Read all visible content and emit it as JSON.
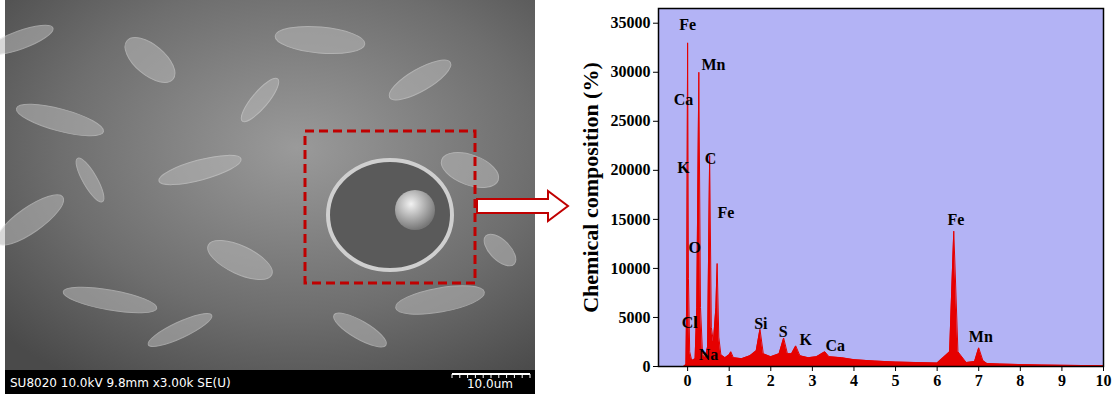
{
  "chart_data": {
    "type": "area",
    "ylabel": "Chemical composition (%)",
    "x": [
      -0.1,
      -0.04,
      -0.02,
      0.0,
      0.02,
      0.05,
      0.1,
      0.18,
      0.22,
      0.27,
      0.31,
      0.36,
      0.42,
      0.48,
      0.53,
      0.57,
      0.62,
      0.68,
      0.71,
      0.75,
      0.8,
      0.9,
      1.0,
      1.04,
      1.1,
      1.3,
      1.5,
      1.65,
      1.74,
      1.82,
      2.0,
      2.2,
      2.31,
      2.4,
      2.5,
      2.6,
      2.7,
      2.9,
      3.1,
      3.3,
      3.4,
      3.7,
      4.0,
      4.5,
      5.0,
      5.5,
      6.0,
      6.3,
      6.4,
      6.5,
      6.7,
      6.9,
      7.0,
      7.1,
      7.2,
      7.5,
      8.0,
      8.5,
      9.0,
      9.5,
      10.0
    ],
    "values": [
      0,
      200,
      8000,
      33000,
      9000,
      1500,
      600,
      800,
      6000,
      30000,
      6000,
      1200,
      900,
      2000,
      21500,
      4000,
      2500,
      6000,
      10500,
      3000,
      1200,
      900,
      1200,
      1500,
      900,
      800,
      1100,
      1600,
      3800,
      1300,
      1000,
      1300,
      2900,
      1300,
      1300,
      2100,
      1100,
      900,
      1000,
      1500,
      1000,
      900,
      700,
      550,
      450,
      400,
      350,
      1500,
      13800,
      1500,
      400,
      500,
      1900,
      600,
      300,
      250,
      200,
      150,
      120,
      100,
      80
    ],
    "color": "#e60000",
    "xlim": [
      -0.7,
      10
    ],
    "ylim": [
      0,
      36500
    ],
    "xticks": [
      0,
      1,
      2,
      3,
      4,
      5,
      6,
      7,
      8,
      9,
      10
    ],
    "yticks": [
      0,
      5000,
      10000,
      15000,
      20000,
      25000,
      30000,
      35000
    ],
    "grid": false,
    "annotations": [
      {
        "text": "Fe",
        "x": 0.0,
        "y": 34800
      },
      {
        "text": "Mn",
        "x": 0.62,
        "y": 30800
      },
      {
        "text": "Ca",
        "x": -0.1,
        "y": 27200
      },
      {
        "text": "K",
        "x": -0.1,
        "y": 20300
      },
      {
        "text": "C",
        "x": 0.55,
        "y": 21200
      },
      {
        "text": "O",
        "x": 0.17,
        "y": 12100
      },
      {
        "text": "Fe",
        "x": 0.92,
        "y": 15700
      },
      {
        "text": "Cl",
        "x": 0.05,
        "y": 4400
      },
      {
        "text": "Na",
        "x": 0.5,
        "y": 1200
      },
      {
        "text": "Si",
        "x": 1.76,
        "y": 4300
      },
      {
        "text": "S",
        "x": 2.3,
        "y": 3500
      },
      {
        "text": "K",
        "x": 2.84,
        "y": 2700
      },
      {
        "text": "Ca",
        "x": 3.55,
        "y": 2100
      },
      {
        "text": "Fe",
        "x": 6.45,
        "y": 15000
      },
      {
        "text": "Mn",
        "x": 7.05,
        "y": 3000
      }
    ]
  },
  "sem_image": {
    "info_bar": "SU8020 10.0kV 9.8mm x3.00k SE(U)",
    "scale_bar": "10.0um"
  }
}
